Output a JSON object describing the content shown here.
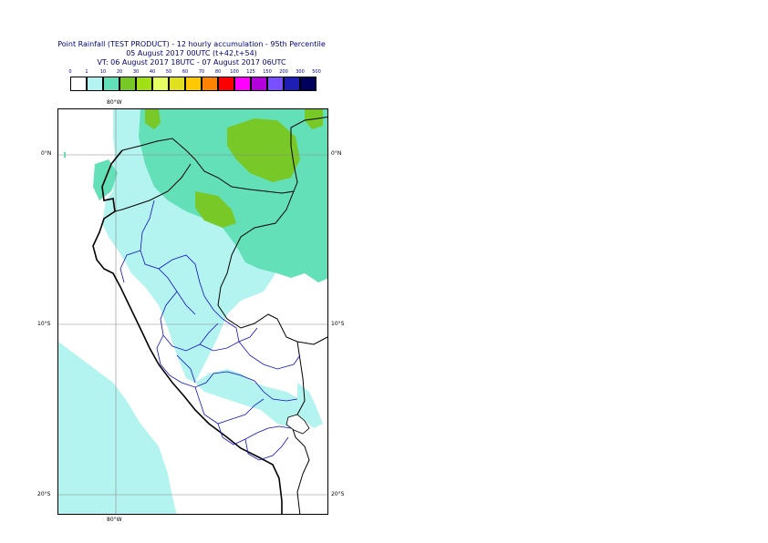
{
  "title": {
    "line1": "Point Rainfall (TEST PRODUCT) - 12 hourly accumulation - 95th Percentile",
    "line2": "05 August 2017 00UTC (t+42,t+54)",
    "line3": "VT: 06 August 2017 18UTC - 07 August 2017 06UTC"
  },
  "legend": {
    "thresholds": [
      "0",
      "1",
      "10",
      "20",
      "30",
      "40",
      "50",
      "60",
      "70",
      "80",
      "100",
      "125",
      "150",
      "200",
      "300",
      "500"
    ],
    "colors": [
      "#ffffff",
      "#b4f4f0",
      "#64e0b8",
      "#78c828",
      "#a0e014",
      "#e8ff64",
      "#e0e020",
      "#ffc800",
      "#ff8200",
      "#ff0000",
      "#ff00ff",
      "#b400dc",
      "#7850ff",
      "#1e1eb4",
      "#00005a"
    ]
  },
  "map": {
    "axis_labels": {
      "lon_top": "80°W",
      "lon_bottom": "80°W",
      "lat_0_left": "0°N",
      "lat_0_right": "0°N",
      "lat_10_left": "10°S",
      "lat_10_right": "10°S",
      "lat_20_left": "20°S",
      "lat_20_right": "20°S"
    },
    "region": "Peru / Ecuador"
  }
}
